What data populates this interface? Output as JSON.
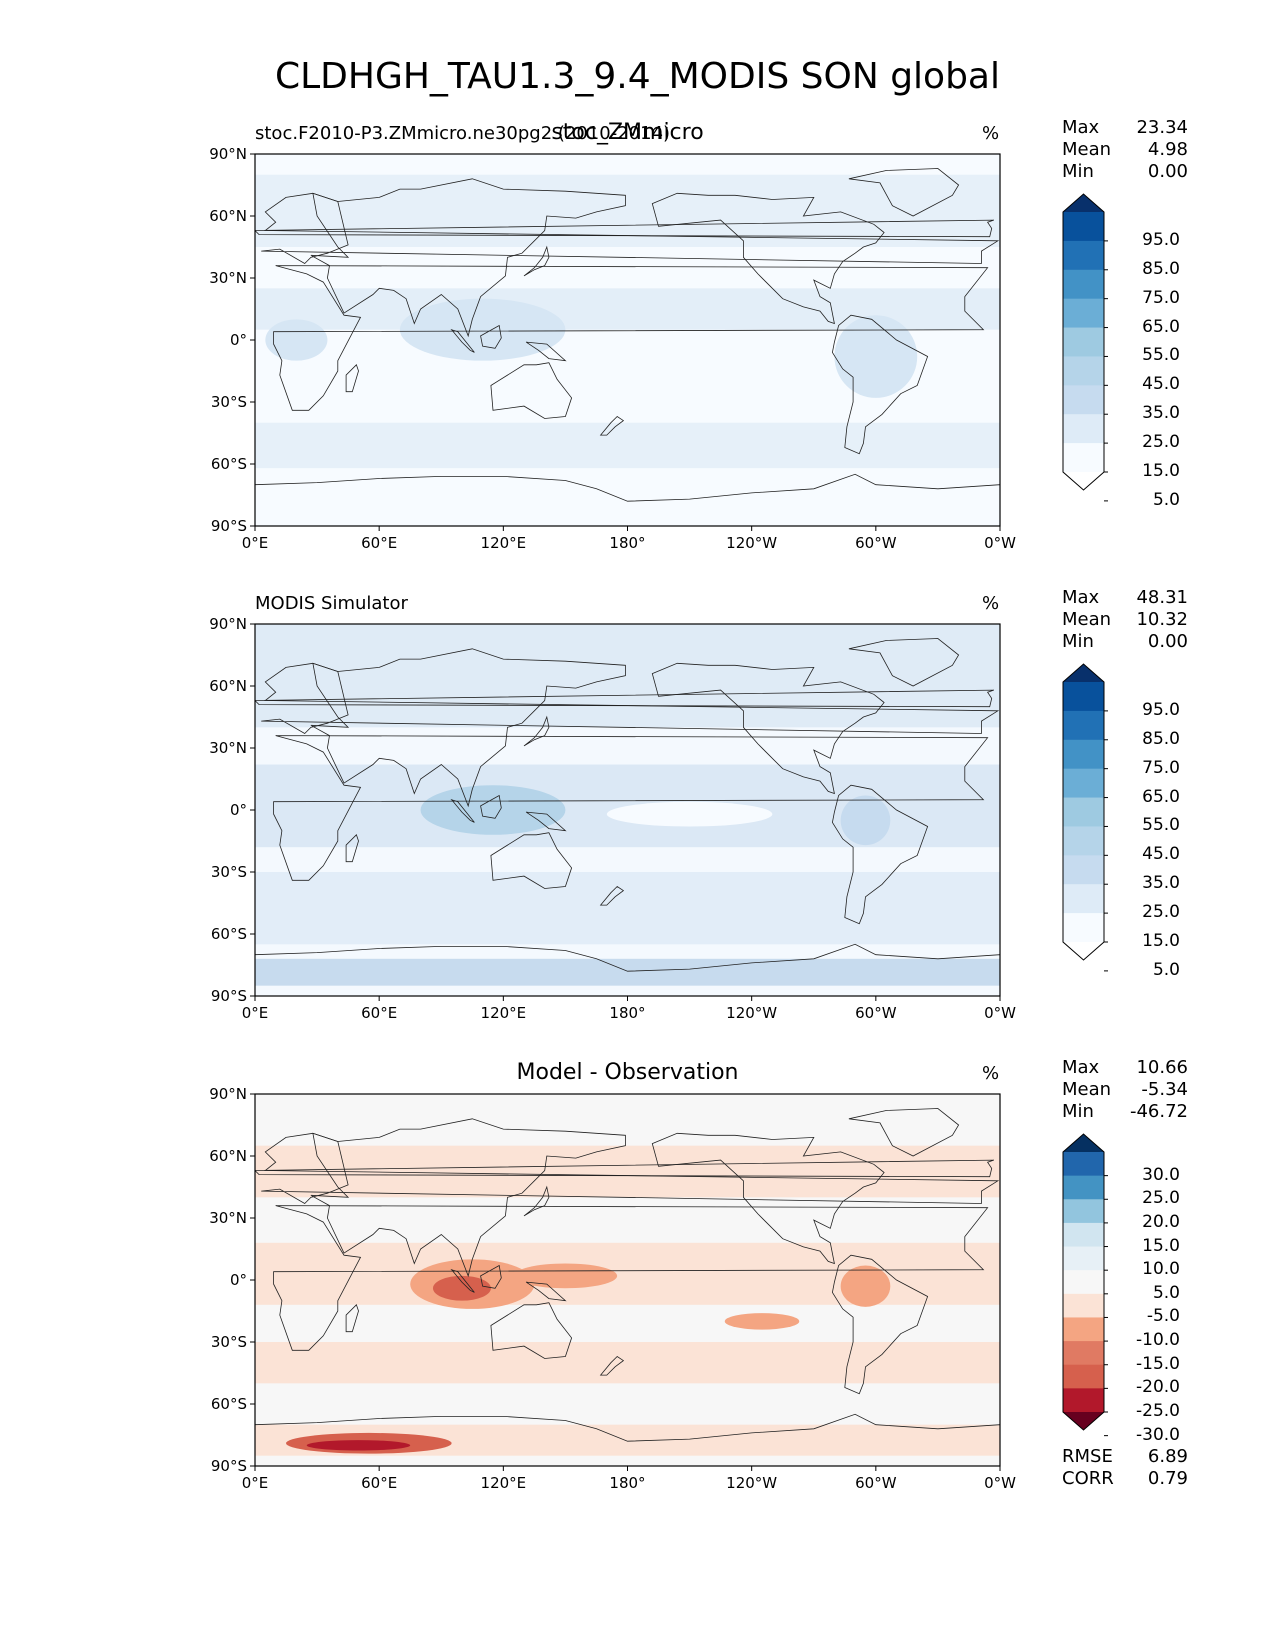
{
  "suptitle": "CLDHGH_TAU1.3_9.4_MODIS SON global",
  "units_label": "%",
  "x_ticks": [
    "0°E",
    "60°E",
    "120°E",
    "180°",
    "120°W",
    "60°W",
    "0°W"
  ],
  "y_ticks": [
    "90°N",
    "60°N",
    "30°N",
    "0°",
    "30°S",
    "60°S",
    "90°S"
  ],
  "stat_labels": {
    "max": "Max",
    "mean": "Mean",
    "min": "Min",
    "rmse": "RMSE",
    "corr": "CORR"
  },
  "panels": [
    {
      "title_left": "stoc.F2010-P3.ZMmicro.ne30pg2 (2010-2014)",
      "title_center": "stoc_ZMmicro",
      "stats": {
        "max": "23.34",
        "mean": "4.98",
        "min": "0.00"
      },
      "colorbar_labels": [
        "95.0",
        "85.0",
        "75.0",
        "65.0",
        "55.0",
        "45.0",
        "35.0",
        "25.0",
        "15.0",
        "5.0"
      ],
      "colorbar_colors": [
        "#08306b",
        "#08519c",
        "#2171b5",
        "#4292c6",
        "#6baed6",
        "#9ecae1",
        "#b5d4e9",
        "#c6dbef",
        "#deebf7",
        "#f7fbff",
        "#ffffff"
      ]
    },
    {
      "title_left": "MODIS Simulator",
      "stats": {
        "max": "48.31",
        "mean": "10.32",
        "min": "0.00"
      },
      "colorbar_labels": [
        "95.0",
        "85.0",
        "75.0",
        "65.0",
        "55.0",
        "45.0",
        "35.0",
        "25.0",
        "15.0",
        "5.0"
      ],
      "colorbar_colors": [
        "#08306b",
        "#08519c",
        "#2171b5",
        "#4292c6",
        "#6baed6",
        "#9ecae1",
        "#b5d4e9",
        "#c6dbef",
        "#deebf7",
        "#f7fbff",
        "#ffffff"
      ]
    },
    {
      "title_center": "Model - Observation",
      "stats": {
        "max": "10.66",
        "mean": "-5.34",
        "min": "-46.72",
        "rmse": "6.89",
        "corr": "0.79"
      },
      "colorbar_labels": [
        "30.0",
        "25.0",
        "20.0",
        "15.0",
        "10.0",
        "5.0",
        "-5.0",
        "-10.0",
        "-15.0",
        "-20.0",
        "-25.0",
        "-30.0"
      ],
      "colorbar_colors": [
        "#053061",
        "#2166ac",
        "#4393c3",
        "#92c5de",
        "#d1e5f0",
        "#e7f0f6",
        "#f7f7f7",
        "#fbe3d6",
        "#f4a582",
        "#e07a63",
        "#d6604d",
        "#b2182b",
        "#67001f"
      ]
    }
  ],
  "chart_data": [
    {
      "type": "heatmap",
      "title": "stoc_ZMmicro",
      "subtitle": "stoc.F2010-P3.ZMmicro.ne30pg2 (2010-2014)",
      "xlim": [
        0,
        360
      ],
      "ylim": [
        -90,
        90
      ],
      "colorbar_levels": [
        5,
        15,
        25,
        35,
        45,
        55,
        65,
        75,
        85,
        95
      ],
      "stats": {
        "max": 23.34,
        "mean": 4.98,
        "min": 0.0
      }
    },
    {
      "type": "heatmap",
      "title": "MODIS Simulator",
      "xlim": [
        0,
        360
      ],
      "ylim": [
        -90,
        90
      ],
      "colorbar_levels": [
        5,
        15,
        25,
        35,
        45,
        55,
        65,
        75,
        85,
        95
      ],
      "stats": {
        "max": 48.31,
        "mean": 10.32,
        "min": 0.0
      }
    },
    {
      "type": "heatmap",
      "title": "Model - Observation",
      "xlim": [
        0,
        360
      ],
      "ylim": [
        -90,
        90
      ],
      "colorbar_levels": [
        -30,
        -25,
        -20,
        -15,
        -10,
        -5,
        5,
        10,
        15,
        20,
        25,
        30
      ],
      "stats": {
        "max": 10.66,
        "mean": -5.34,
        "min": -46.72,
        "rmse": 6.89,
        "corr": 0.79
      }
    }
  ]
}
